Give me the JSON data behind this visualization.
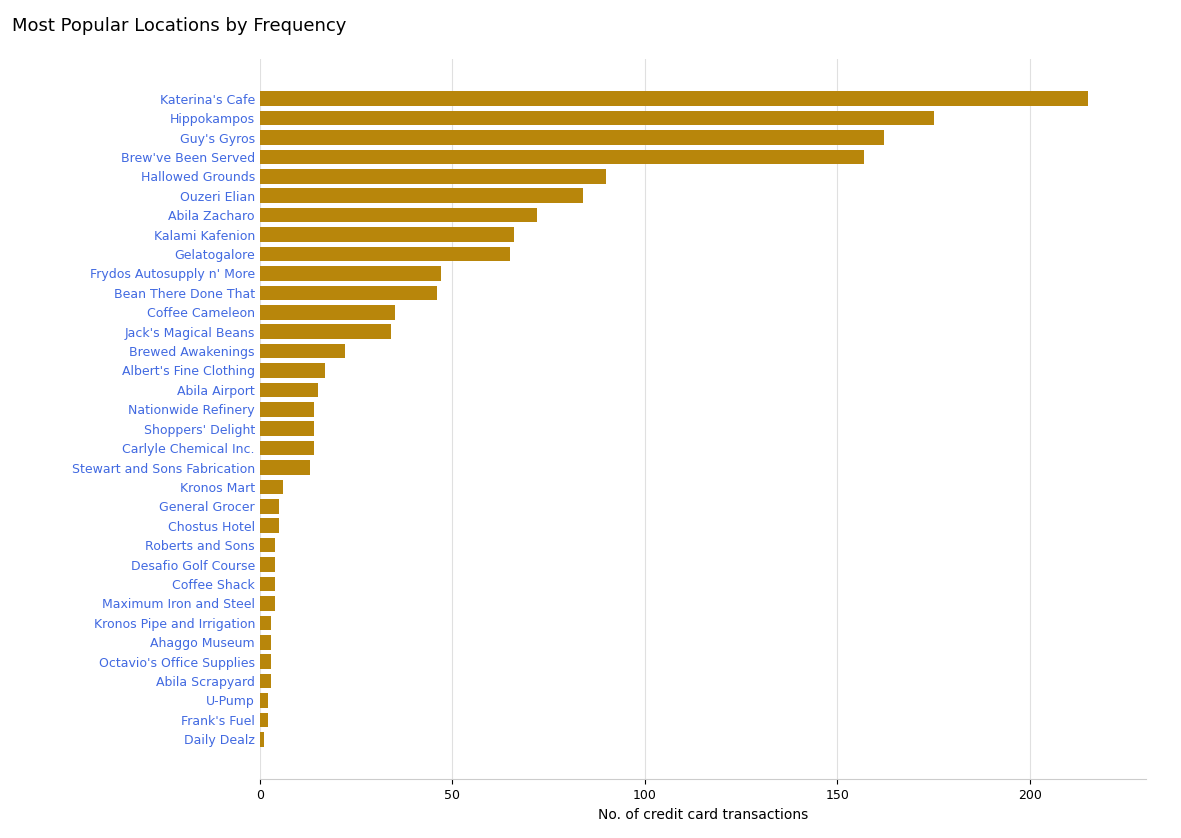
{
  "title": "Most Popular Locations by Frequency",
  "xlabel": "No. of credit card transactions",
  "bar_color": "#B8860B",
  "categories": [
    "Daily Dealz",
    "Frank's Fuel",
    "U-Pump",
    "Abila Scrapyard",
    "Octavio's Office Supplies",
    "Ahaggo Museum",
    "Kronos Pipe and Irrigation",
    "Maximum Iron and Steel",
    "Coffee Shack",
    "Desafio Golf Course",
    "Roberts and Sons",
    "Chostus Hotel",
    "General Grocer",
    "Kronos Mart",
    "Stewart and Sons Fabrication",
    "Carlyle Chemical Inc.",
    "Shoppers' Delight",
    "Nationwide Refinery",
    "Abila Airport",
    "Albert's Fine Clothing",
    "Brewed Awakenings",
    "Jack's Magical Beans",
    "Coffee Cameleon",
    "Bean There Done That",
    "Frydos Autosupply n' More",
    "Gelatogalore",
    "Kalami Kafenion",
    "Abila Zacharo",
    "Ouzeri Elian",
    "Hallowed Grounds",
    "Brew've Been Served",
    "Guy's Gyros",
    "Hippokampos",
    "Katerina's Cafe"
  ],
  "values": [
    1,
    2,
    2,
    3,
    3,
    3,
    3,
    4,
    4,
    4,
    4,
    5,
    5,
    6,
    13,
    14,
    14,
    14,
    15,
    17,
    22,
    34,
    35,
    46,
    47,
    65,
    66,
    72,
    84,
    90,
    157,
    162,
    175,
    215
  ],
  "label_color": "#4169E1",
  "figsize": [
    11.81,
    8.38
  ],
  "dpi": 100,
  "title_fontsize": 13,
  "axis_label_fontsize": 10,
  "tick_fontsize": 9,
  "xlim": [
    0,
    230
  ],
  "background_color": "#FFFFFF",
  "grid_color": "#E0E0E0"
}
